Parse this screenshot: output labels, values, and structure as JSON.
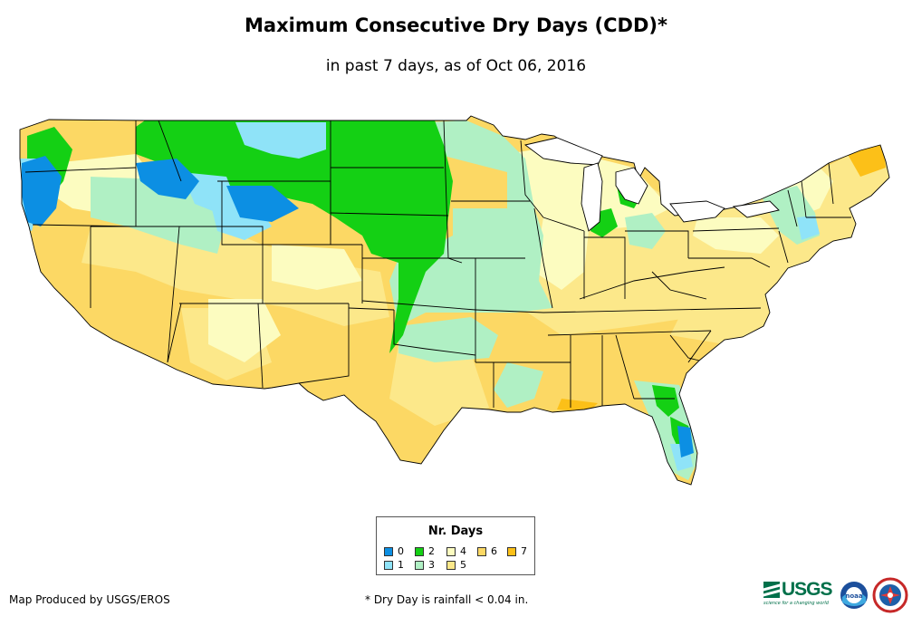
{
  "title": "Maximum Consecutive Dry Days (CDD)*",
  "subtitle": "in past 7 days, as of Oct 06, 2016",
  "legend": {
    "title": "Nr. Days",
    "items": [
      {
        "label": "0",
        "color": "#0c8fe3"
      },
      {
        "label": "1",
        "color": "#8fe3f8"
      },
      {
        "label": "2",
        "color": "#14d014"
      },
      {
        "label": "3",
        "color": "#b0f0c4"
      },
      {
        "label": "4",
        "color": "#fcfcc0"
      },
      {
        "label": "5",
        "color": "#fce88a"
      },
      {
        "label": "6",
        "color": "#fcd864"
      },
      {
        "label": "7",
        "color": "#fcc018"
      }
    ]
  },
  "footer": {
    "producer": "Map Produced by USGS/EROS",
    "footnote": "* Dry Day is rainfall < 0.04 in."
  },
  "logos": {
    "usgs_text": "USGS",
    "usgs_tagline": "science for a changing world",
    "noaa_text": "noaa"
  }
}
